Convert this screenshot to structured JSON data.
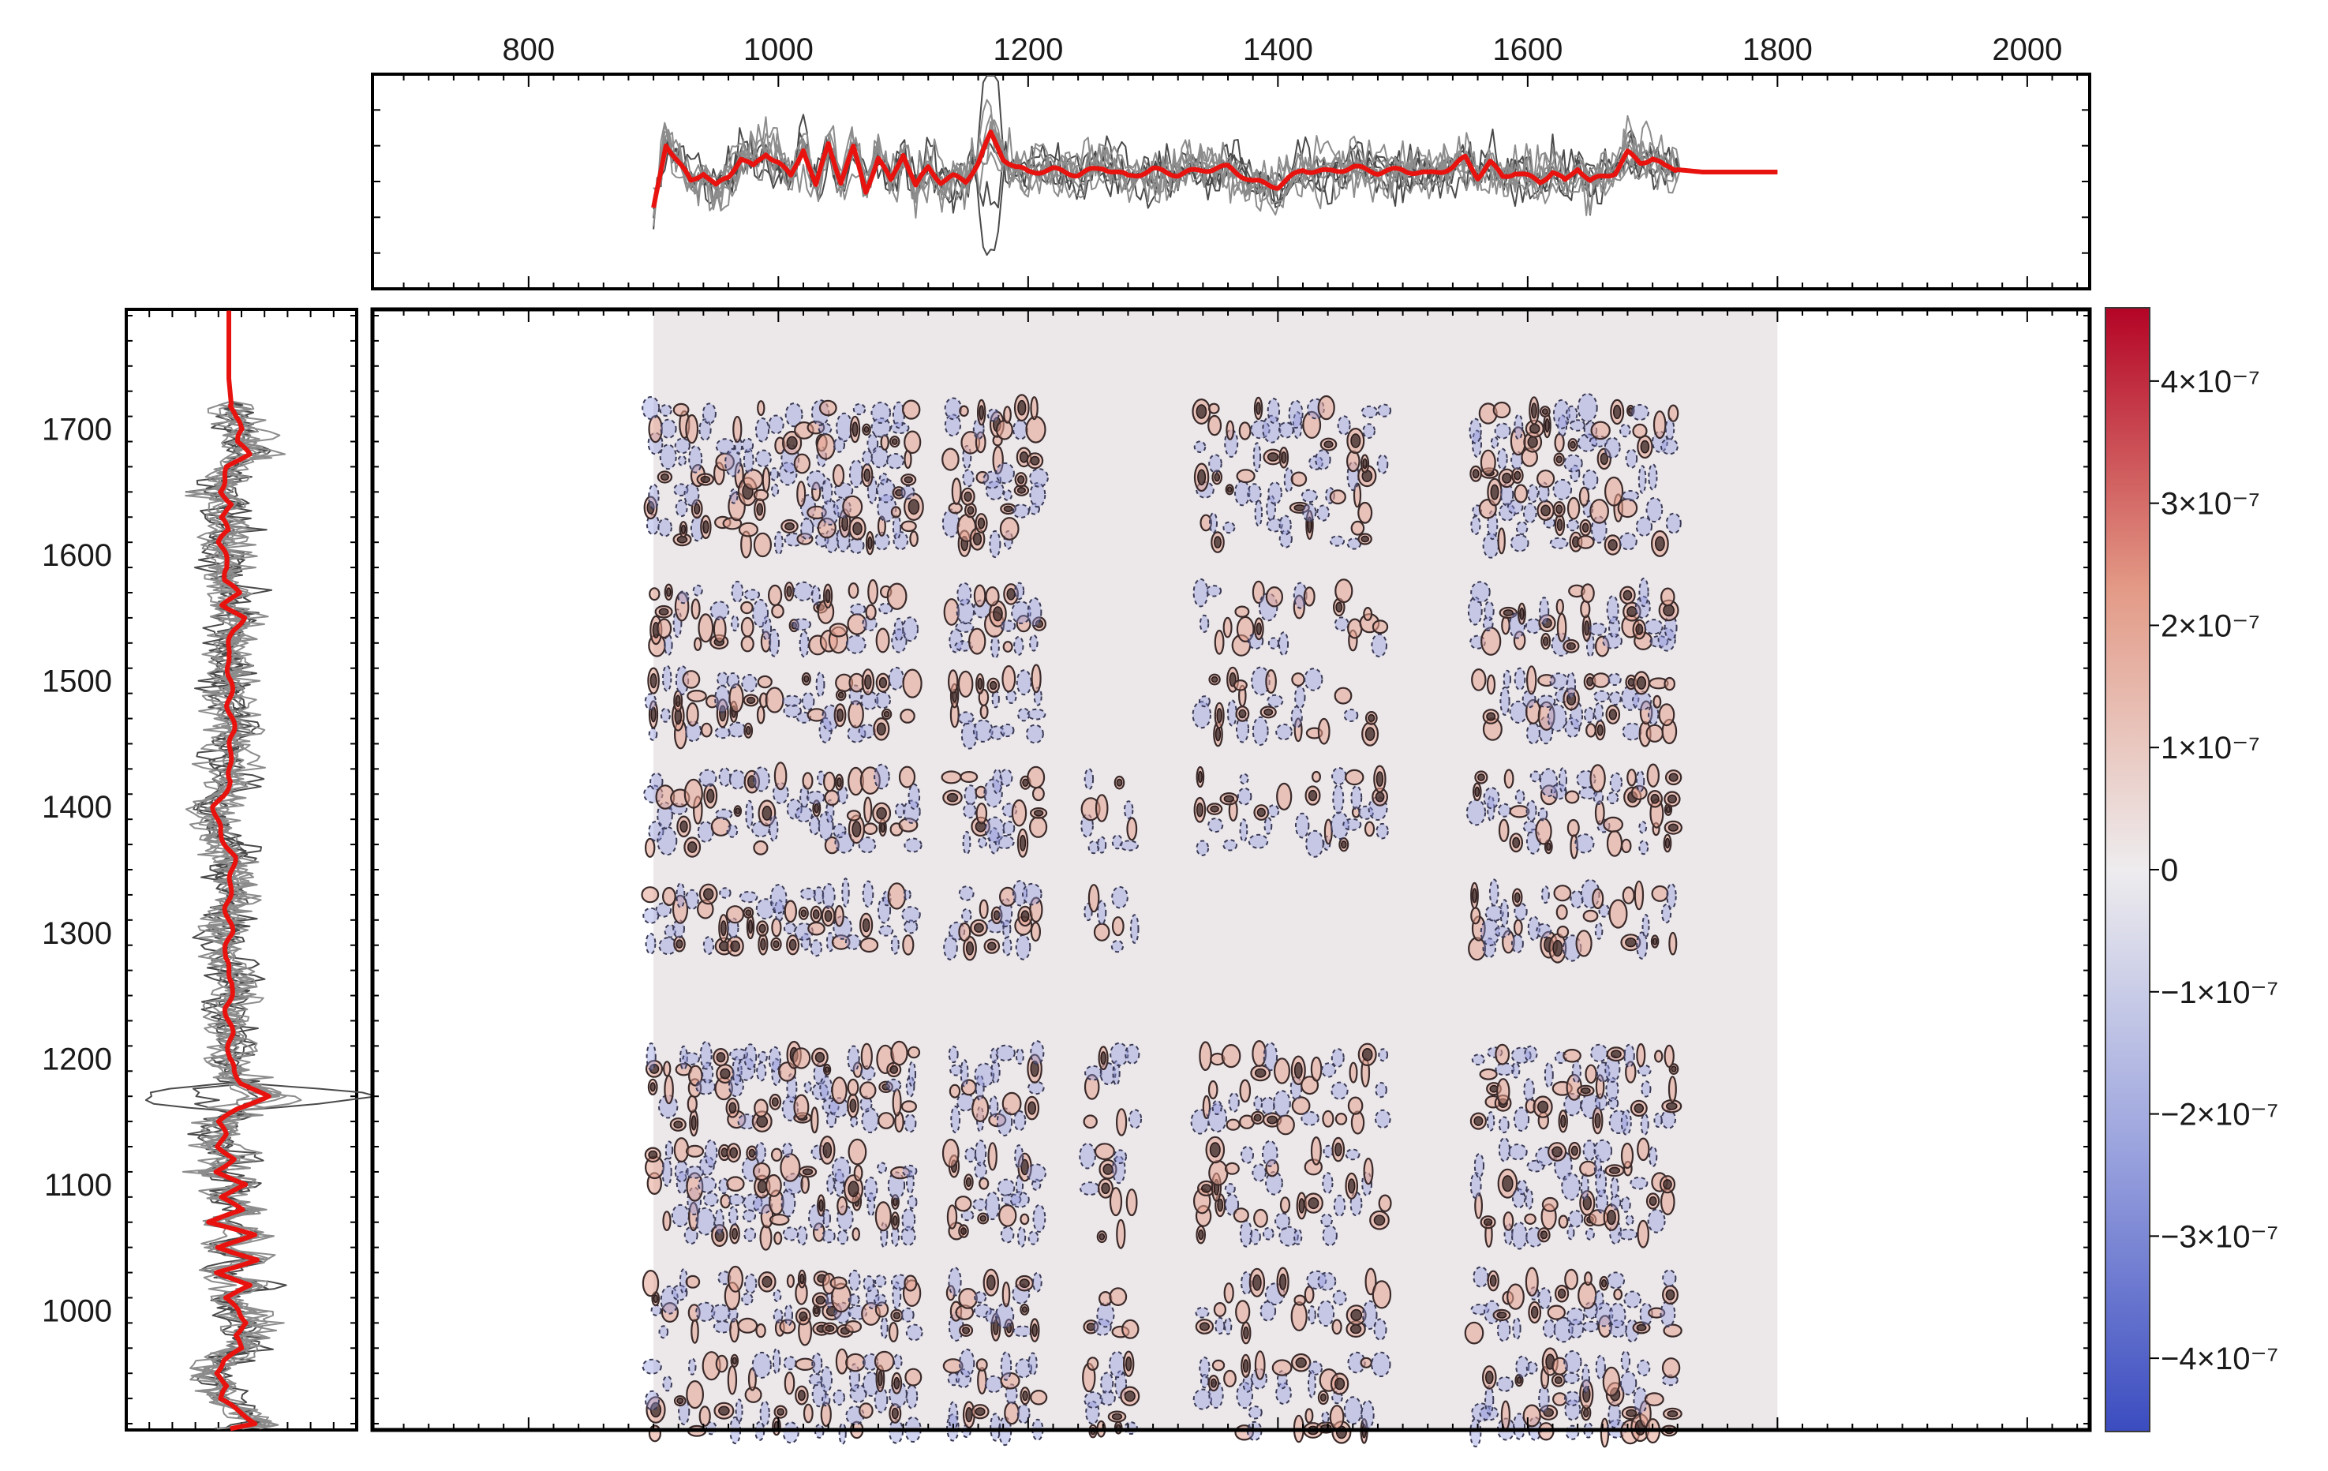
{
  "chart_data": {
    "type": "heatmap",
    "subtype": "2D correlation synchronous map with contour lines and marginal spectra",
    "title": "",
    "xlabel": "",
    "ylabel": "",
    "xlim": [
      675,
      2050
    ],
    "ylim": [
      905,
      1795
    ],
    "data_extent": {
      "x": [
        900,
        1800
      ],
      "y": [
        905,
        1795
      ]
    },
    "x_ticks": [
      800,
      1000,
      1200,
      1400,
      1600,
      1800,
      2000
    ],
    "y_ticks": [
      1000,
      1100,
      1200,
      1300,
      1400,
      1500,
      1600,
      1700
    ],
    "grid": false,
    "colorbar": {
      "range": [
        -4.6e-07,
        4.6e-07
      ],
      "colormap": [
        "#3b4cc0",
        "#eeecee",
        "#b40426"
      ],
      "ticks": [
        {
          "value": 4e-07,
          "label": "4×10⁻⁷"
        },
        {
          "value": 3e-07,
          "label": "3×10⁻⁷"
        },
        {
          "value": 2e-07,
          "label": "2×10⁻⁷"
        },
        {
          "value": 1e-07,
          "label": "1×10⁻⁷"
        },
        {
          "value": 0,
          "label": "0"
        },
        {
          "value": -1e-07,
          "label": "−1×10⁻⁷"
        },
        {
          "value": -2e-07,
          "label": "−2×10⁻⁷"
        },
        {
          "value": -3e-07,
          "label": "−3×10⁻⁷"
        },
        {
          "value": -4e-07,
          "label": "−4×10⁻⁷"
        }
      ]
    },
    "contour_clusters": {
      "x_bands": [
        [
          900,
          1035
        ],
        [
          1040,
          1115
        ],
        [
          1140,
          1210
        ],
        [
          1250,
          1290
        ],
        [
          1340,
          1490
        ],
        [
          1560,
          1720
        ]
      ],
      "y_bands": [
        [
          905,
          960
        ],
        [
          985,
          1030
        ],
        [
          1060,
          1125
        ],
        [
          1150,
          1210
        ],
        [
          1290,
          1330
        ],
        [
          1370,
          1430
        ],
        [
          1460,
          1500
        ],
        [
          1530,
          1580
        ],
        [
          1610,
          1720
        ]
      ]
    },
    "marginal_spectrum": {
      "series": [
        {
          "role": "mean",
          "color": "#e8130f",
          "x": [
            900,
            910,
            920,
            930,
            940,
            950,
            960,
            970,
            980,
            990,
            1000,
            1010,
            1020,
            1030,
            1040,
            1050,
            1060,
            1070,
            1080,
            1090,
            1100,
            1110,
            1120,
            1130,
            1140,
            1150,
            1160,
            1170,
            1180,
            1190,
            1200,
            1220,
            1240,
            1260,
            1280,
            1300,
            1320,
            1340,
            1360,
            1380,
            1400,
            1420,
            1440,
            1460,
            1480,
            1500,
            1520,
            1540,
            1550,
            1560,
            1570,
            1580,
            1590,
            1600,
            1610,
            1620,
            1630,
            1640,
            1650,
            1660,
            1670,
            1680,
            1690,
            1700,
            1710,
            1720,
            1740,
            1760,
            1780,
            1800
          ],
          "y": [
            -0.8,
            0.6,
            0.2,
            -0.2,
            0.0,
            -0.3,
            -0.1,
            0.3,
            0.1,
            0.4,
            0.2,
            -0.1,
            0.5,
            -0.3,
            0.6,
            -0.2,
            0.5,
            -0.4,
            0.3,
            -0.2,
            0.4,
            -0.3,
            0.1,
            -0.2,
            -0.1,
            -0.2,
            0.2,
            0.8,
            0.3,
            0.1,
            0.0,
            0.05,
            -0.05,
            0.1,
            -0.1,
            0.05,
            -0.05,
            0.05,
            0.1,
            -0.2,
            -0.3,
            0.05,
            0.0,
            0.1,
            0.0,
            0.05,
            -0.05,
            0.1,
            0.3,
            -0.1,
            0.2,
            -0.1,
            0.0,
            -0.1,
            -0.2,
            0.0,
            -0.2,
            0.1,
            -0.2,
            -0.1,
            0.0,
            0.4,
            0.2,
            0.3,
            0.1,
            0.05,
            0.0,
            0.0,
            0.0,
            0.0
          ]
        }
      ]
    }
  }
}
